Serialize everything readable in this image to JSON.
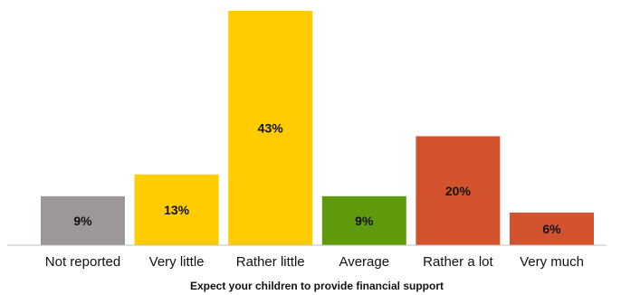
{
  "chart_data": {
    "type": "bar",
    "categories": [
      "Not reported",
      "Very little",
      "Rather little",
      "Average",
      "Rather a lot",
      "Very much"
    ],
    "values": [
      9,
      13,
      43,
      9,
      20,
      6
    ],
    "data_labels": [
      "9%",
      "13%",
      "43%",
      "9%",
      "20%",
      "6%"
    ],
    "colors": [
      "#9e9797",
      "#ffcc00",
      "#ffcc00",
      "#5f9a0c",
      "#d4532f",
      "#d4532f"
    ],
    "xlabel": "Expect your children to provide financial support",
    "ylabel": "",
    "ylim": [
      0,
      45
    ],
    "grid": false,
    "legend": "none"
  }
}
